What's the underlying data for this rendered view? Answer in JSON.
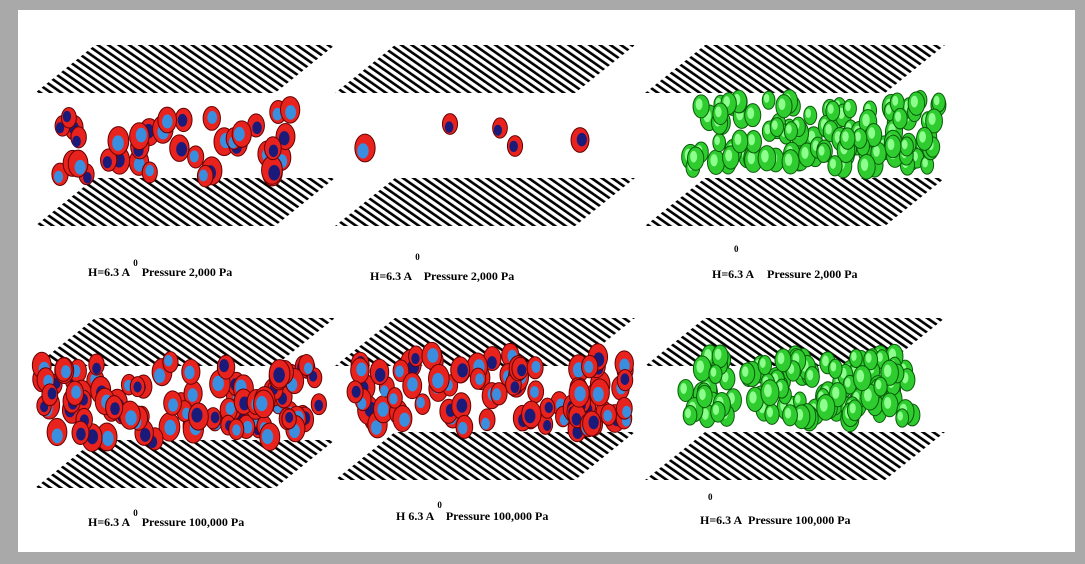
{
  "panels": [
    {
      "caption": "H=6.3 A",
      "superscript": "0",
      "pressure": "Pressure 2,000 Pa"
    },
    {
      "caption": "H=6.3 A",
      "superscript": "0",
      "pressure": "Pressure  2,000 Pa"
    },
    {
      "caption": "H=6.3 A",
      "superscript": "0",
      "pressure": "Pressure 2,000 Pa"
    },
    {
      "caption": "H=6.3 A",
      "superscript": "0",
      "pressure": "Pressure 100,000 Pa"
    },
    {
      "caption": "H 6.3 A",
      "superscript": "0",
      "pressure": "Pressure 100,000 Pa"
    },
    {
      "caption": "H=6.3 A",
      "superscript": "0",
      "pressure": "Pressure 100,000 Pa"
    }
  ]
}
